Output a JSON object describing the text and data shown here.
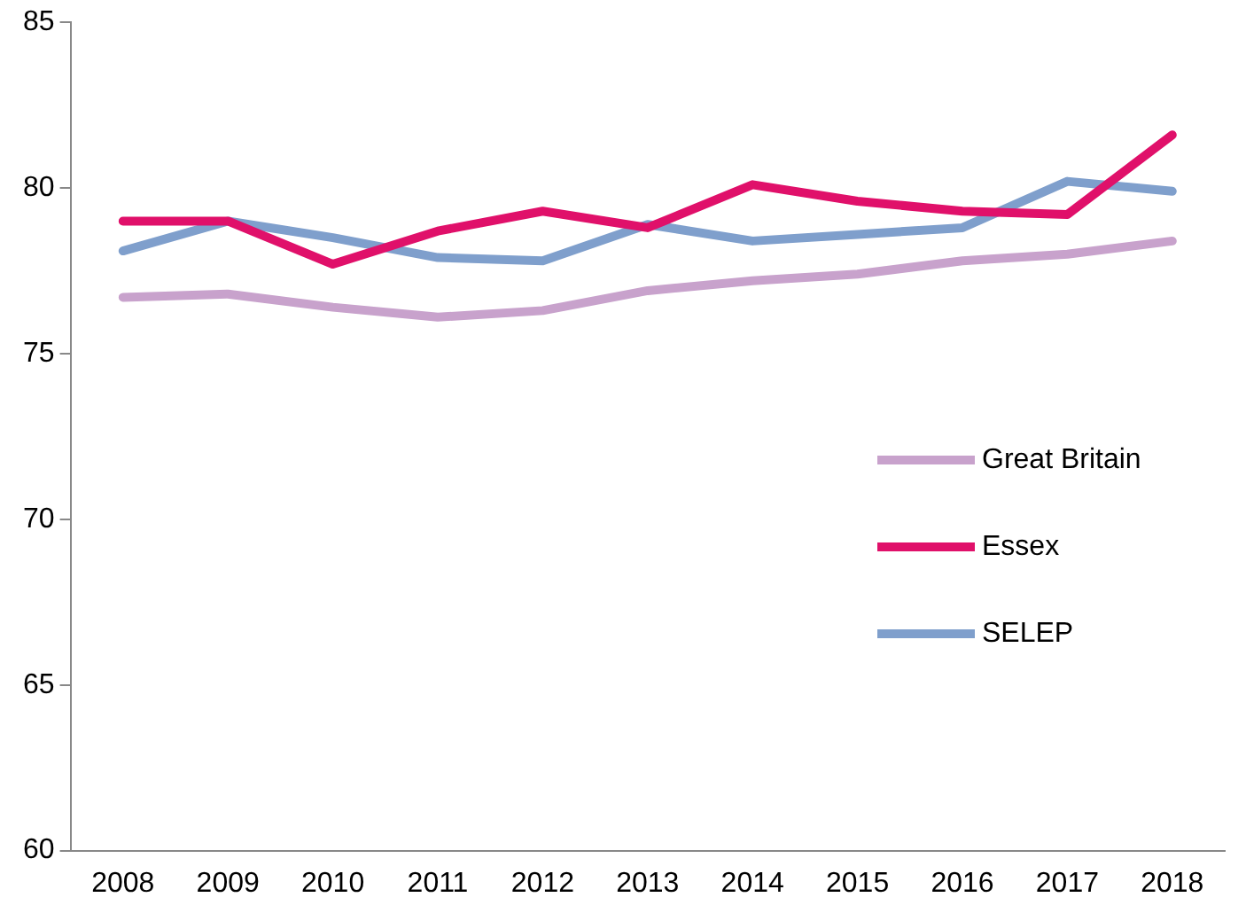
{
  "chart_data": {
    "type": "line",
    "categories": [
      "2008",
      "2009",
      "2010",
      "2011",
      "2012",
      "2013",
      "2014",
      "2015",
      "2016",
      "2017",
      "2018"
    ],
    "series": [
      {
        "name": "Great Britain",
        "color": "#c8a2cc",
        "values": [
          76.7,
          76.8,
          76.4,
          76.1,
          76.3,
          76.9,
          77.2,
          77.4,
          77.8,
          78.0,
          78.4
        ]
      },
      {
        "name": "Essex",
        "color": "#e0106a",
        "values": [
          79.0,
          79.0,
          77.7,
          78.7,
          79.3,
          78.8,
          80.1,
          79.6,
          79.3,
          79.2,
          81.6
        ]
      },
      {
        "name": "SELEP",
        "color": "#7f9fcc",
        "values": [
          78.1,
          79.0,
          78.5,
          77.9,
          77.8,
          78.9,
          78.4,
          78.6,
          78.8,
          80.2,
          79.9
        ]
      }
    ],
    "ylim": [
      60,
      85
    ],
    "yticks": [
      60,
      65,
      70,
      75,
      80,
      85
    ],
    "grid": false,
    "legend": "right",
    "marker": "none",
    "line_style": "solid"
  }
}
